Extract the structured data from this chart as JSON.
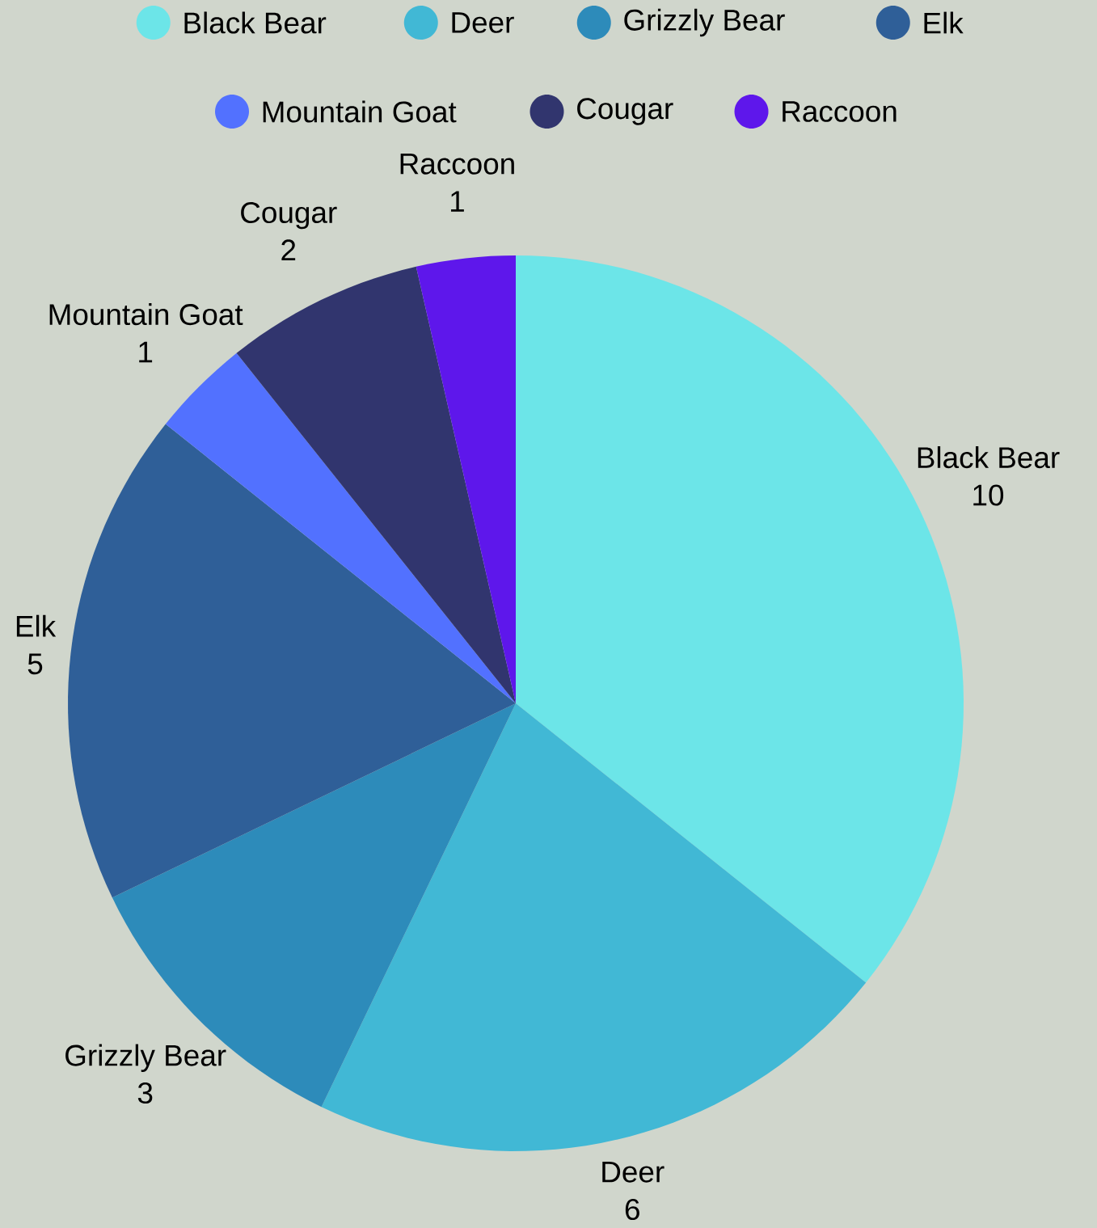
{
  "chart_data": {
    "type": "pie",
    "categories": [
      "Black Bear",
      "Deer",
      "Grizzly Bear",
      "Elk",
      "Mountain Goat",
      "Cougar",
      "Raccoon"
    ],
    "values": [
      10,
      6,
      3,
      5,
      1,
      2,
      1
    ],
    "colors": [
      "#6ce5e8",
      "#41b8d5",
      "#2d8bba",
      "#2f5f98",
      "#5271ff",
      "#31356e",
      "#5e17eb"
    ],
    "data_labels": true,
    "legend": "top"
  }
}
